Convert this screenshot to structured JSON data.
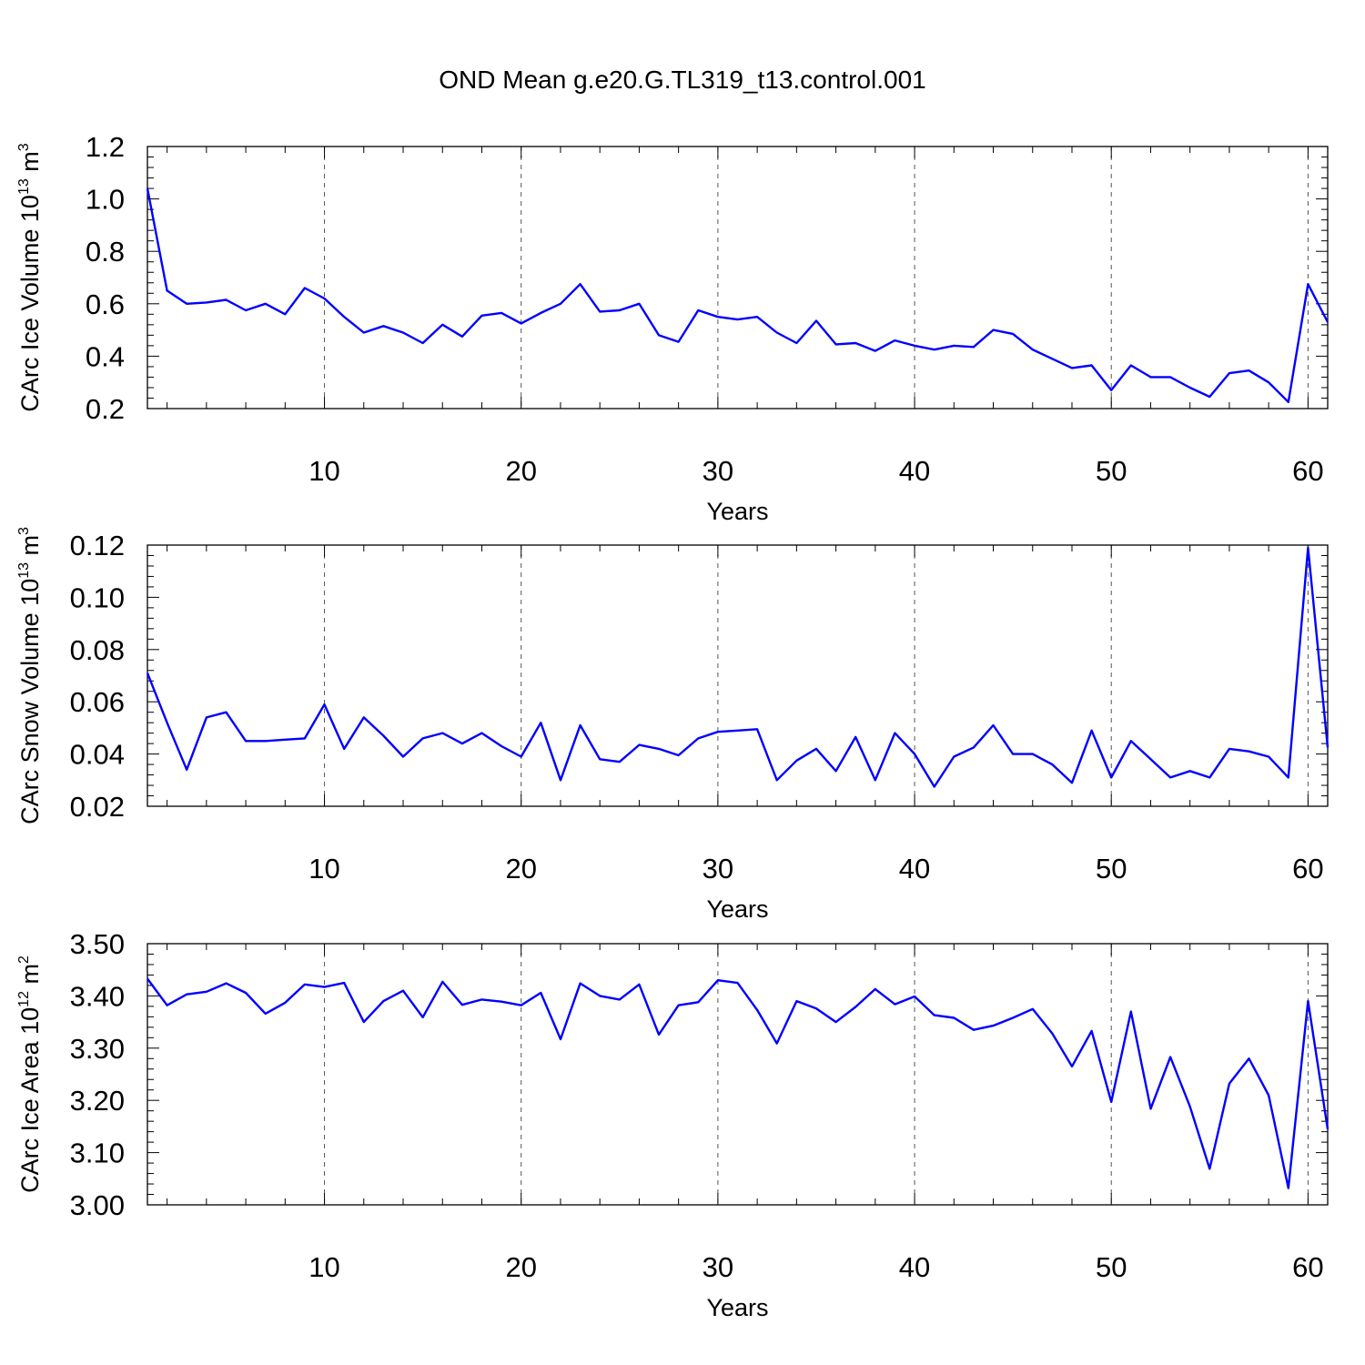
{
  "title": "OND Mean g.e20.G.TL319_t13.control.001",
  "chart_data": [
    {
      "type": "line",
      "xlabel": "Years",
      "ylabel": "CArc Ice Volume 10",
      "ylabel_exp": "13",
      "ylabel_unit": "m",
      "ylabel_unit_exp": "3",
      "xlim": [
        1,
        61
      ],
      "ylim": [
        0.2,
        1.2
      ],
      "xticks": [
        10,
        20,
        30,
        40,
        50,
        60
      ],
      "xtick_labels": [
        "10",
        "20",
        "30",
        "40",
        "50",
        "60"
      ],
      "yticks": [
        0.2,
        0.4,
        0.6,
        0.8,
        1.0,
        1.2
      ],
      "ytick_labels": [
        "0.2",
        "0.4",
        "0.6",
        "0.8",
        "1.0",
        "1.2"
      ],
      "grid": "vertical dashed at major x ticks",
      "color": "#0000ff",
      "x": [
        1,
        2,
        3,
        4,
        5,
        6,
        7,
        8,
        9,
        10,
        11,
        12,
        13,
        14,
        15,
        16,
        17,
        18,
        19,
        20,
        21,
        22,
        23,
        24,
        25,
        26,
        27,
        28,
        29,
        30,
        31,
        32,
        33,
        34,
        35,
        36,
        37,
        38,
        39,
        40,
        41,
        42,
        43,
        44,
        45,
        46,
        47,
        48,
        49,
        50,
        51,
        52,
        53,
        54,
        55,
        56,
        57,
        58,
        59,
        60,
        61
      ],
      "values": [
        1.04,
        0.65,
        0.6,
        0.605,
        0.615,
        0.575,
        0.6,
        0.56,
        0.66,
        0.62,
        0.55,
        0.49,
        0.515,
        0.49,
        0.45,
        0.52,
        0.475,
        0.555,
        0.565,
        0.525,
        0.565,
        0.6,
        0.675,
        0.57,
        0.575,
        0.6,
        0.48,
        0.455,
        0.575,
        0.55,
        0.54,
        0.55,
        0.49,
        0.45,
        0.535,
        0.445,
        0.45,
        0.42,
        0.46,
        0.44,
        0.425,
        0.44,
        0.435,
        0.5,
        0.485,
        0.425,
        0.39,
        0.355,
        0.365,
        0.27,
        0.365,
        0.32,
        0.32,
        0.28,
        0.245,
        0.335,
        0.345,
        0.3,
        0.225,
        0.675,
        0.53
      ]
    },
    {
      "type": "line",
      "xlabel": "Years",
      "ylabel": "CArc Snow Volume 10",
      "ylabel_exp": "13",
      "ylabel_unit": "m",
      "ylabel_unit_exp": "3",
      "xlim": [
        1,
        61
      ],
      "ylim": [
        0.02,
        0.12
      ],
      "xticks": [
        10,
        20,
        30,
        40,
        50,
        60
      ],
      "xtick_labels": [
        "10",
        "20",
        "30",
        "40",
        "50",
        "60"
      ],
      "yticks": [
        0.02,
        0.04,
        0.06,
        0.08,
        0.1,
        0.12
      ],
      "ytick_labels": [
        "0.02",
        "0.04",
        "0.06",
        "0.08",
        "0.10",
        "0.12"
      ],
      "grid": "vertical dashed at major x ticks",
      "color": "#0000ff",
      "x": [
        1,
        2,
        3,
        4,
        5,
        6,
        7,
        8,
        9,
        10,
        11,
        12,
        13,
        14,
        15,
        16,
        17,
        18,
        19,
        20,
        21,
        22,
        23,
        24,
        25,
        26,
        27,
        28,
        29,
        30,
        31,
        32,
        33,
        34,
        35,
        36,
        37,
        38,
        39,
        40,
        41,
        42,
        43,
        44,
        45,
        46,
        47,
        48,
        49,
        50,
        51,
        52,
        53,
        54,
        55,
        56,
        57,
        58,
        59,
        60,
        61
      ],
      "values": [
        0.071,
        0.052,
        0.034,
        0.054,
        0.056,
        0.045,
        0.045,
        0.0455,
        0.046,
        0.059,
        0.042,
        0.054,
        0.047,
        0.039,
        0.046,
        0.048,
        0.044,
        0.048,
        0.043,
        0.039,
        0.052,
        0.03,
        0.051,
        0.038,
        0.037,
        0.0435,
        0.042,
        0.0395,
        0.046,
        0.0485,
        0.049,
        0.0495,
        0.03,
        0.0375,
        0.042,
        0.0335,
        0.0465,
        0.03,
        0.048,
        0.04,
        0.0275,
        0.039,
        0.0425,
        0.051,
        0.04,
        0.04,
        0.036,
        0.029,
        0.049,
        0.031,
        0.045,
        0.038,
        0.031,
        0.0335,
        0.031,
        0.042,
        0.041,
        0.039,
        0.031,
        0.119,
        0.0425
      ]
    },
    {
      "type": "line",
      "xlabel": "Years",
      "ylabel": "CArc Ice Area 10",
      "ylabel_exp": "12",
      "ylabel_unit": "m",
      "ylabel_unit_exp": "2",
      "xlim": [
        1,
        61
      ],
      "ylim": [
        3.0,
        3.5
      ],
      "xticks": [
        10,
        20,
        30,
        40,
        50,
        60
      ],
      "xtick_labels": [
        "10",
        "20",
        "30",
        "40",
        "50",
        "60"
      ],
      "yticks": [
        3.0,
        3.1,
        3.2,
        3.3,
        3.4,
        3.5
      ],
      "ytick_labels": [
        "3.00",
        "3.10",
        "3.20",
        "3.30",
        "3.40",
        "3.50"
      ],
      "grid": "vertical dashed at major x ticks",
      "color": "#0000ff",
      "x": [
        1,
        2,
        3,
        4,
        5,
        6,
        7,
        8,
        9,
        10,
        11,
        12,
        13,
        14,
        15,
        16,
        17,
        18,
        19,
        20,
        21,
        22,
        23,
        24,
        25,
        26,
        27,
        28,
        29,
        30,
        31,
        32,
        33,
        34,
        35,
        36,
        37,
        38,
        39,
        40,
        41,
        42,
        43,
        44,
        45,
        46,
        47,
        48,
        49,
        50,
        51,
        52,
        53,
        54,
        55,
        56,
        57,
        58,
        59,
        60,
        61
      ],
      "values": [
        3.433,
        3.382,
        3.403,
        3.408,
        3.424,
        3.406,
        3.366,
        3.387,
        3.422,
        3.417,
        3.425,
        3.35,
        3.39,
        3.41,
        3.359,
        3.427,
        3.383,
        3.393,
        3.389,
        3.382,
        3.406,
        3.317,
        3.424,
        3.4,
        3.393,
        3.422,
        3.326,
        3.382,
        3.388,
        3.43,
        3.425,
        3.373,
        3.309,
        3.39,
        3.376,
        3.35,
        3.379,
        3.413,
        3.384,
        3.399,
        3.363,
        3.358,
        3.335,
        3.343,
        3.358,
        3.375,
        3.328,
        3.265,
        3.333,
        3.197,
        3.37,
        3.184,
        3.283,
        3.188,
        3.069,
        3.232,
        3.28,
        3.21,
        3.032,
        3.39,
        3.145
      ]
    }
  ]
}
